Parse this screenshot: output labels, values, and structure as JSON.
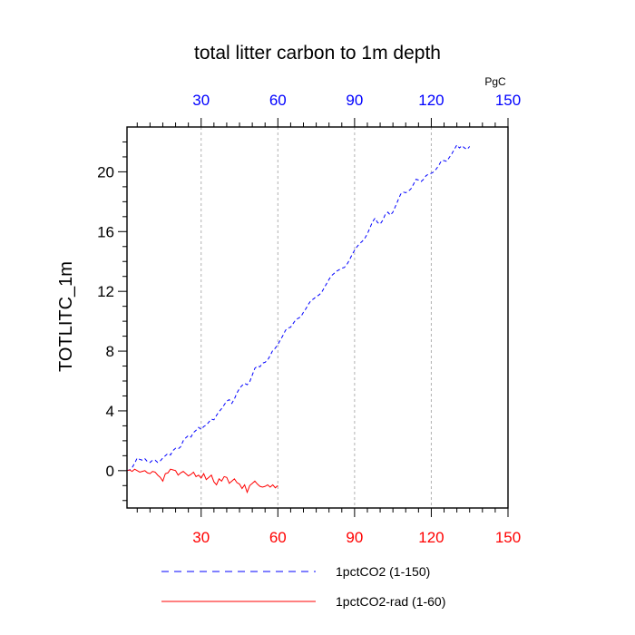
{
  "chart_data": {
    "type": "line",
    "title": "total litter carbon to 1m depth",
    "ylabel": "TOTLITC_1m",
    "units_label": "PgC",
    "xlim": [
      1,
      150
    ],
    "ylim": [
      -2.5,
      23
    ],
    "x_ticks_bottom": [
      30,
      60,
      90,
      120,
      150
    ],
    "x_ticks_top": [
      30,
      60,
      90,
      120,
      150
    ],
    "y_ticks": [
      0,
      4,
      8,
      12,
      16,
      20
    ],
    "grid": "vertical-dashed",
    "legend_position": "bottom",
    "series": [
      {
        "name": "1pctCO2 (1-150)",
        "color": "#0000ff",
        "style": "dashed",
        "x_start": 1,
        "values": [
          0.0,
          0.05,
          0.2,
          0.5,
          0.85,
          0.75,
          0.7,
          0.8,
          0.6,
          0.55,
          0.7,
          0.7,
          0.55,
          0.65,
          0.85,
          1.0,
          1.15,
          1.05,
          1.35,
          1.5,
          1.45,
          1.6,
          2.0,
          2.2,
          2.35,
          2.25,
          2.55,
          2.7,
          2.9,
          2.75,
          2.95,
          3.05,
          3.25,
          3.45,
          3.4,
          3.7,
          3.95,
          4.15,
          4.4,
          4.65,
          4.75,
          4.5,
          4.8,
          5.2,
          5.5,
          5.7,
          5.85,
          5.75,
          5.95,
          6.4,
          6.85,
          7.0,
          6.95,
          7.2,
          7.25,
          7.4,
          7.7,
          8.05,
          8.2,
          8.45,
          8.75,
          9.05,
          9.4,
          9.55,
          9.6,
          9.85,
          10.1,
          10.2,
          10.3,
          10.6,
          10.85,
          11.15,
          11.4,
          11.5,
          11.65,
          11.75,
          11.9,
          12.2,
          12.5,
          12.8,
          13.05,
          13.2,
          13.35,
          13.45,
          13.55,
          13.6,
          13.8,
          14.1,
          14.45,
          14.75,
          15.0,
          15.2,
          15.35,
          15.55,
          15.85,
          16.25,
          16.65,
          16.9,
          16.6,
          16.5,
          16.75,
          17.15,
          17.3,
          17.1,
          17.3,
          17.7,
          18.1,
          18.5,
          18.65,
          18.6,
          18.7,
          18.85,
          19.15,
          19.5,
          19.45,
          19.35,
          19.5,
          19.75,
          19.85,
          19.9,
          20.0,
          20.2,
          20.45,
          20.75,
          20.75,
          20.7,
          20.95,
          21.2,
          21.5,
          21.8,
          21.6,
          21.75,
          21.6,
          21.5,
          21.7
        ]
      },
      {
        "name": "1pctCO2-rad (1-60)",
        "color": "#ff0000",
        "style": "solid",
        "x_start": 1,
        "values": [
          0.0,
          0.05,
          -0.05,
          0.1,
          0.0,
          -0.1,
          -0.05,
          0.0,
          -0.15,
          -0.2,
          -0.05,
          -0.1,
          -0.3,
          -0.45,
          -0.7,
          -0.2,
          -0.15,
          0.1,
          0.05,
          0.0,
          -0.3,
          -0.15,
          -0.05,
          -0.2,
          -0.35,
          -0.25,
          -0.1,
          -0.4,
          -0.3,
          -0.5,
          -0.2,
          -0.6,
          -0.45,
          -0.3,
          -0.75,
          -0.95,
          -0.55,
          -0.7,
          -0.4,
          -0.45,
          -0.85,
          -0.7,
          -0.55,
          -0.8,
          -0.9,
          -1.2,
          -0.95,
          -1.45,
          -1.0,
          -0.85,
          -0.7,
          -0.9,
          -1.05,
          -1.1,
          -1.05,
          -0.95,
          -1.1,
          -0.95,
          -1.15,
          -1.0
        ]
      }
    ]
  }
}
